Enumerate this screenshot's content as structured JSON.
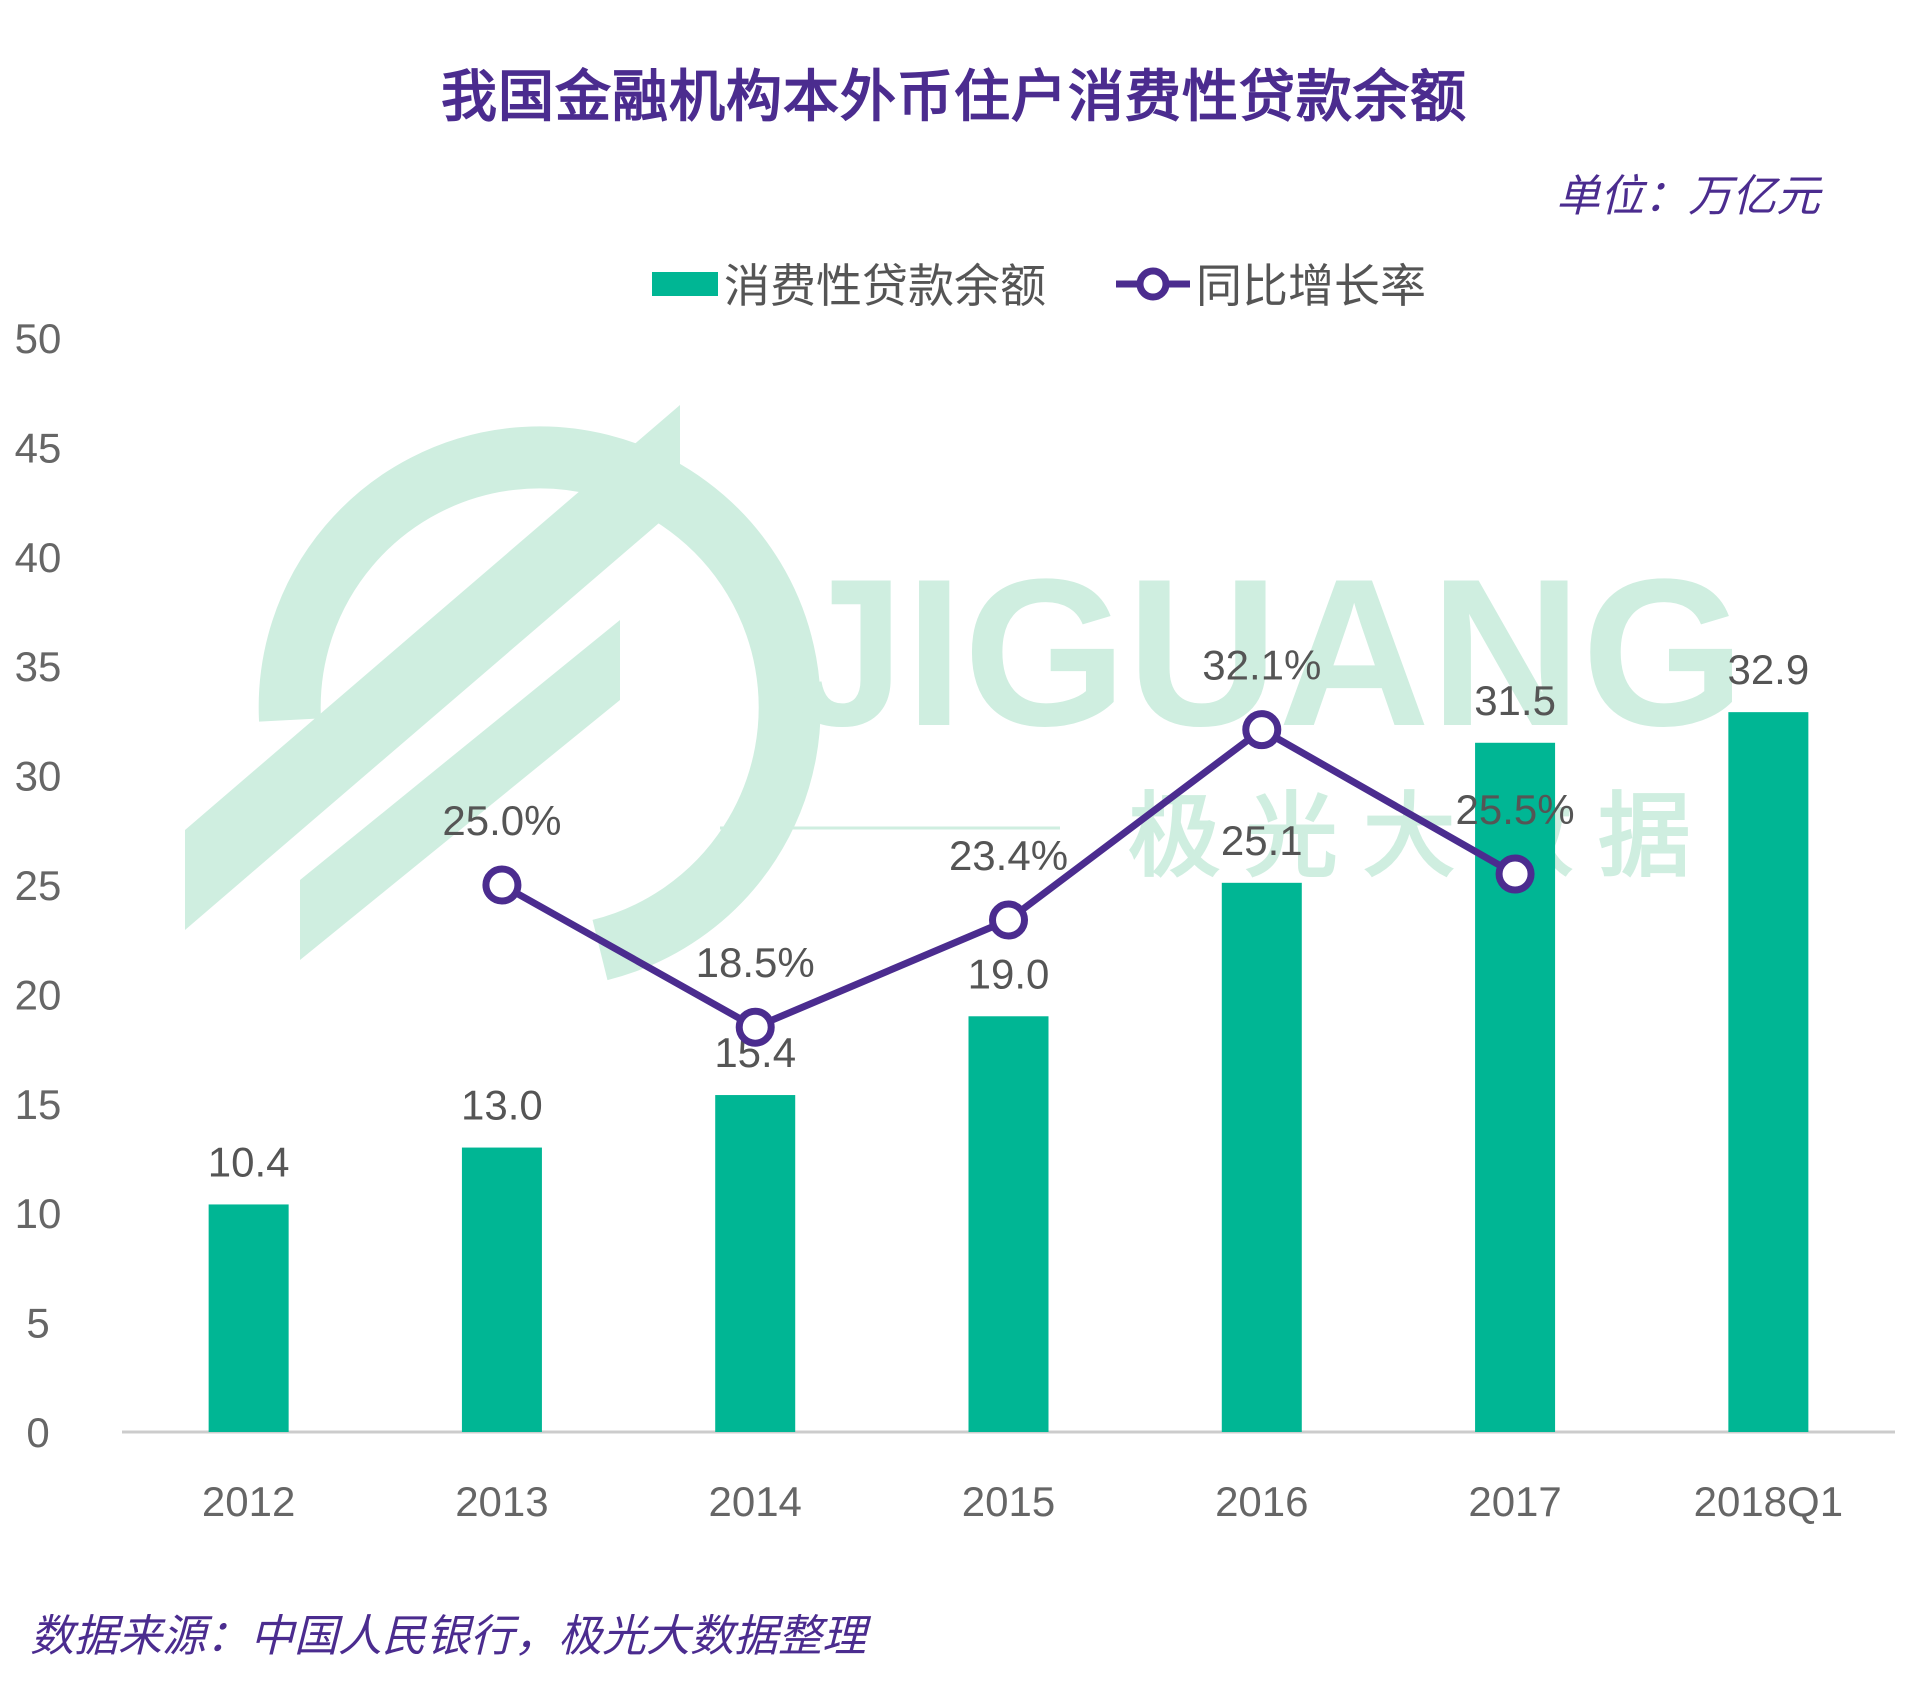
{
  "page_title": "我国金融机构本外币住户消费性贷款余额",
  "unit_label": "单位：万亿元",
  "source_note": "数据来源：中国人民银行，极光大数据整理",
  "watermark": {
    "brand": "JIGUANG",
    "subtitle": "极 光 大 数 据"
  },
  "colors": {
    "bar": "#00b694",
    "line": "#4b2c8f",
    "title": "#4b2c8f",
    "axis": "#cccccc",
    "text": "#555555",
    "watermark": "#cfeee0"
  },
  "chart_data": {
    "type": "bar",
    "title": "我国金融机构本外币住户消费性贷款余额",
    "categories": [
      "2012",
      "2013",
      "2014",
      "2015",
      "2016",
      "2017",
      "2018Q1"
    ],
    "ylim": [
      0,
      50
    ],
    "yticks": [
      0,
      5,
      10,
      15,
      20,
      25,
      30,
      35,
      40,
      45,
      50
    ],
    "legend_position": "top-center",
    "grid": false,
    "series": [
      {
        "name": "消费性贷款余额",
        "type": "bar",
        "values": [
          10.4,
          13.0,
          15.4,
          19.0,
          25.1,
          31.5,
          32.9
        ],
        "labels": [
          "10.4",
          "13.0",
          "15.4",
          "19.0",
          "25.1",
          "31.5",
          "32.9"
        ]
      },
      {
        "name": "同比增长率",
        "type": "line",
        "values": [
          null,
          25.0,
          18.5,
          23.4,
          32.1,
          25.5,
          null
        ],
        "labels": [
          "",
          "25.0%",
          "18.5%",
          "23.4%",
          "32.1%",
          "25.5%",
          ""
        ]
      }
    ]
  }
}
